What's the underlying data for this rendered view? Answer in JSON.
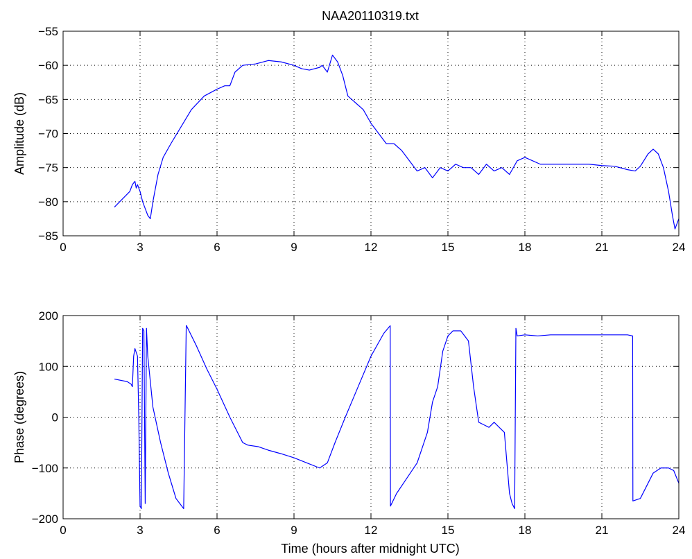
{
  "figure_title": "NAA20110319.txt",
  "xlabel": "Time (hours after midnight UTC)",
  "line_color": "#0000ff",
  "chart_data": [
    {
      "type": "line",
      "title": "NAA20110319.txt",
      "xlabel": "",
      "ylabel": "Amplitude (dB)",
      "xlim": [
        0,
        24
      ],
      "ylim": [
        -85,
        -55
      ],
      "xticks": [
        0,
        3,
        6,
        9,
        12,
        15,
        18,
        21,
        24
      ],
      "yticks": [
        -85,
        -80,
        -75,
        -70,
        -65,
        -60,
        -55
      ],
      "grid": true,
      "series": [
        {
          "x": [
            2.0,
            2.6,
            2.7,
            2.8,
            2.85,
            2.9,
            3.0,
            3.1,
            3.2,
            3.3,
            3.4,
            3.5,
            3.7,
            3.9,
            4.2,
            4.6,
            5.0,
            5.5,
            6.0,
            6.3,
            6.5,
            6.7,
            7.0,
            7.5,
            8.0,
            8.5,
            9.0,
            9.3,
            9.6,
            10.0,
            10.1,
            10.3,
            10.5,
            10.7,
            10.9,
            11.1,
            11.4,
            11.7,
            12.0,
            12.3,
            12.6,
            12.9,
            13.2,
            13.5,
            13.8,
            14.1,
            14.4,
            14.7,
            15.0,
            15.3,
            15.6,
            15.9,
            16.2,
            16.5,
            16.8,
            17.1,
            17.4,
            17.7,
            18.0,
            18.3,
            18.6,
            19.0,
            19.5,
            20.0,
            20.5,
            21.0,
            21.5,
            22.0,
            22.3,
            22.5,
            22.8,
            23.0,
            23.2,
            23.4,
            23.6,
            23.75,
            23.85,
            24.0
          ],
          "y": [
            -80.8,
            -78.5,
            -77.5,
            -77.0,
            -78.0,
            -77.5,
            -78.5,
            -80.0,
            -81.0,
            -82.0,
            -82.5,
            -80.0,
            -76.0,
            -73.5,
            -71.5,
            -69.0,
            -66.5,
            -64.5,
            -63.5,
            -63.0,
            -63.0,
            -61.0,
            -60.0,
            -59.8,
            -59.3,
            -59.5,
            -60.0,
            -60.5,
            -60.7,
            -60.3,
            -60.0,
            -61.0,
            -58.5,
            -59.5,
            -61.5,
            -64.5,
            -65.5,
            -66.5,
            -68.5,
            -70.0,
            -71.5,
            -71.5,
            -72.5,
            -74.0,
            -75.5,
            -75.0,
            -76.5,
            -75.0,
            -75.5,
            -74.5,
            -75.0,
            -75.0,
            -76.0,
            -74.5,
            -75.5,
            -75.0,
            -76.0,
            -74.0,
            -73.5,
            -74.0,
            -74.5,
            -74.5,
            -74.5,
            -74.5,
            -74.5,
            -74.7,
            -74.8,
            -75.3,
            -75.5,
            -74.8,
            -73.0,
            -72.3,
            -73.0,
            -75.0,
            -78.5,
            -82.0,
            -84.0,
            -82.5
          ]
        }
      ]
    },
    {
      "type": "line",
      "title": "",
      "xlabel": "Time (hours after midnight UTC)",
      "ylabel": "Phase (degrees)",
      "xlim": [
        0,
        24
      ],
      "ylim": [
        -200,
        200
      ],
      "xticks": [
        0,
        3,
        6,
        9,
        12,
        15,
        18,
        21,
        24
      ],
      "yticks": [
        -200,
        -100,
        0,
        100,
        200
      ],
      "grid": true,
      "series": [
        {
          "x": [
            2.0,
            2.5,
            2.65,
            2.7,
            2.75,
            2.8,
            2.9,
            2.95,
            3.0,
            3.05,
            3.1,
            3.15,
            3.2,
            3.25,
            3.3,
            3.5,
            3.8,
            4.1,
            4.4,
            4.7,
            4.8,
            4.81,
            5.2,
            5.6,
            6.0,
            6.5,
            7.0,
            7.2,
            7.6,
            8.0,
            8.5,
            9.0,
            9.5,
            10.0,
            10.3,
            10.6,
            11.0,
            11.5,
            12.0,
            12.5,
            12.75,
            12.76,
            13.0,
            13.4,
            13.8,
            14.0,
            14.2,
            14.4,
            14.6,
            14.8,
            15.0,
            15.2,
            15.5,
            15.8,
            16.0,
            16.2,
            16.4,
            16.6,
            16.8,
            17.0,
            17.2,
            17.4,
            17.5,
            17.6,
            17.65,
            17.7,
            18.0,
            18.5,
            19.0,
            19.5,
            20.0,
            20.5,
            21.0,
            21.5,
            22.0,
            22.2,
            22.21,
            22.5,
            22.7,
            23.0,
            23.3,
            23.6,
            23.8,
            24.0
          ],
          "y": [
            75,
            70,
            65,
            60,
            120,
            135,
            120,
            0,
            -175,
            -180,
            175,
            170,
            -170,
            175,
            120,
            20,
            -50,
            -110,
            -160,
            -180,
            180,
            180,
            140,
            95,
            55,
            0,
            -50,
            -55,
            -58,
            -65,
            -72,
            -80,
            -90,
            -100,
            -90,
            -50,
            0,
            60,
            120,
            165,
            180,
            -175,
            -150,
            -120,
            -90,
            -60,
            -30,
            30,
            60,
            130,
            160,
            170,
            170,
            150,
            60,
            -10,
            -15,
            -20,
            -10,
            -20,
            -30,
            -150,
            -170,
            -180,
            175,
            160,
            162,
            160,
            162,
            162,
            162,
            162,
            162,
            162,
            162,
            160,
            -165,
            -160,
            -140,
            -110,
            -100,
            -100,
            -105,
            -130
          ]
        }
      ]
    }
  ]
}
